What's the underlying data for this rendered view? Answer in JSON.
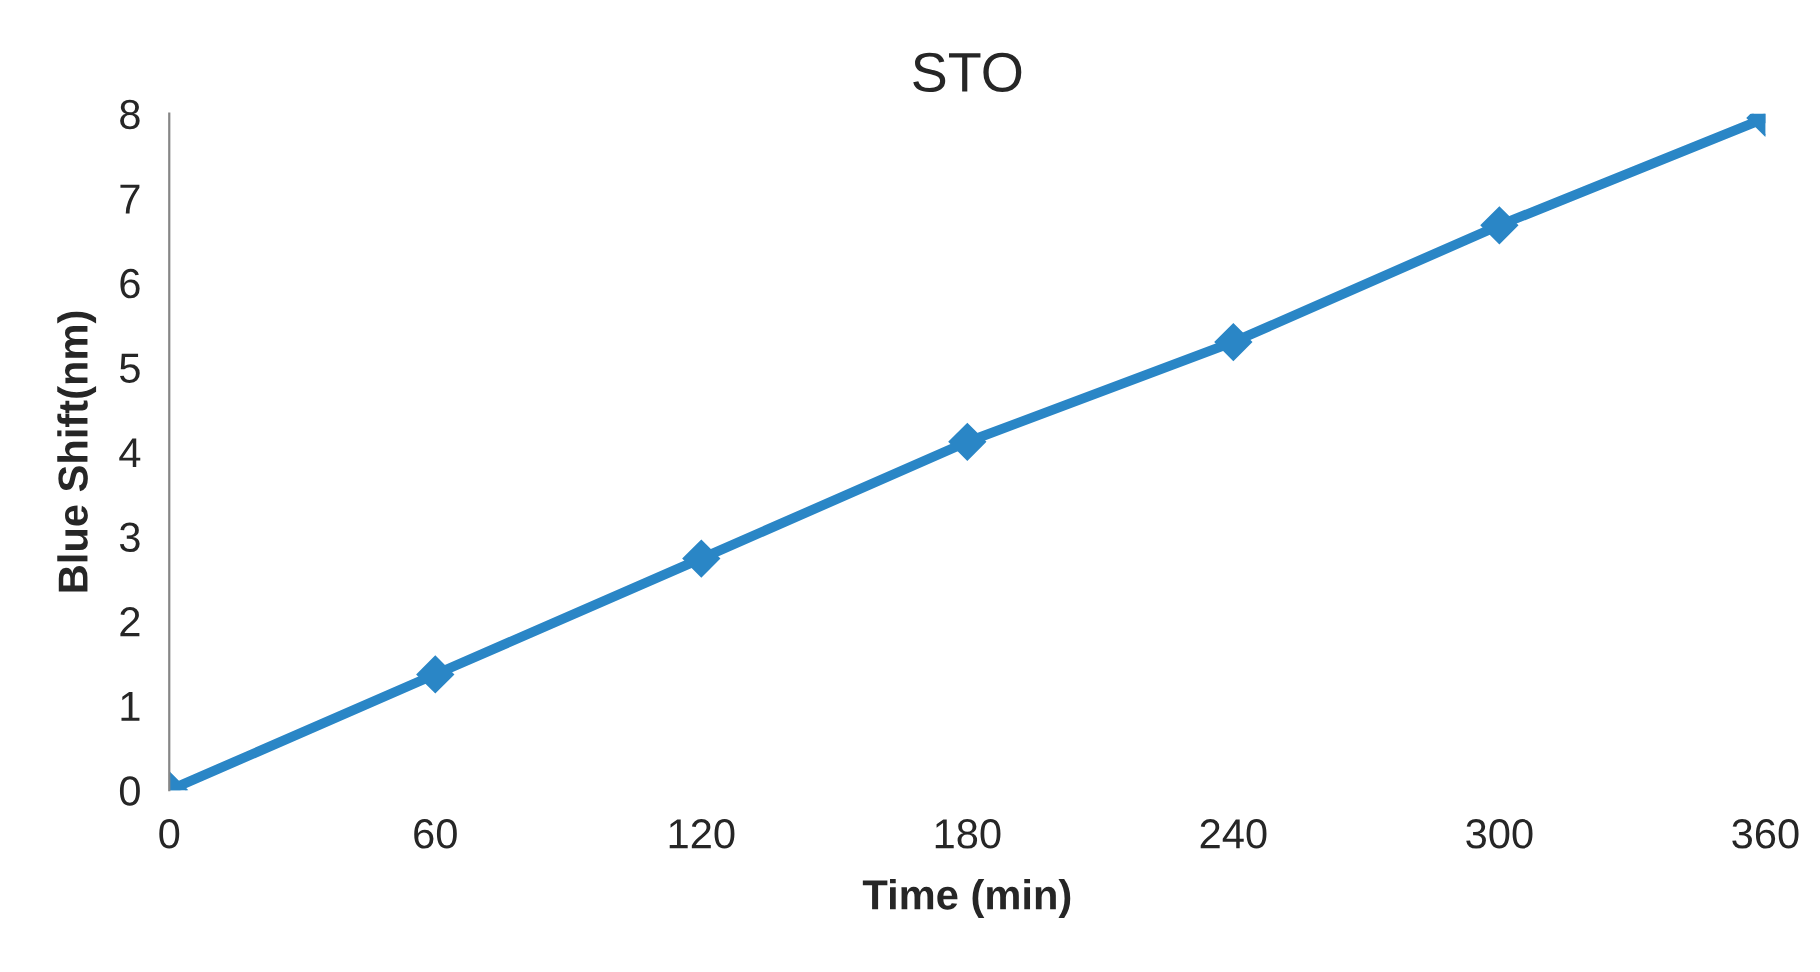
{
  "chart_data": {
    "type": "line",
    "title": "STO",
    "xlabel": "Time (min)",
    "ylabel": "Blue Shift(nm)",
    "x": [
      0,
      60,
      120,
      180,
      240,
      300,
      360
    ],
    "series": [
      {
        "color": "#2a86c6",
        "values": [
          0,
          1.37,
          2.74,
          4.12,
          5.3,
          6.68,
          7.95
        ]
      }
    ],
    "xlim": [
      0,
      360
    ],
    "ylim": [
      0,
      8
    ],
    "xticks": [
      0,
      60,
      120,
      180,
      240,
      300,
      360
    ],
    "yticks": [
      0,
      1,
      2,
      3,
      4,
      5,
      6,
      7,
      8
    ],
    "marker": "diamond",
    "line_style": "solid"
  }
}
